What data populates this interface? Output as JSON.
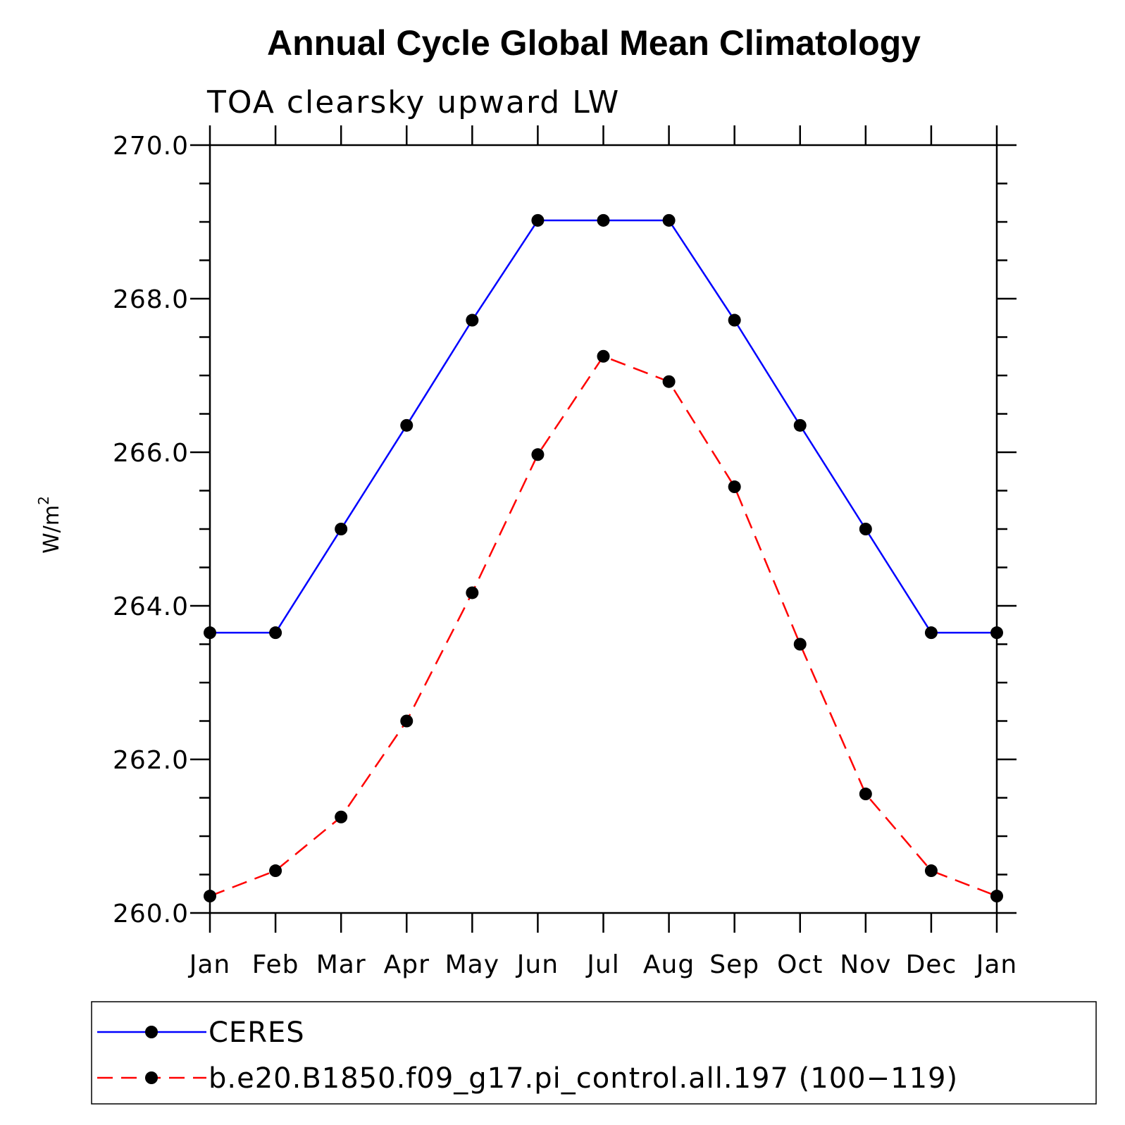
{
  "chart_data": {
    "type": "line",
    "title": "Annual Cycle Global Mean Climatology",
    "subtitle": "TOA clearsky upward LW",
    "ylabel": "W/m",
    "ylabel_superscript": "2",
    "xlabel": "",
    "categories": [
      "Jan",
      "Feb",
      "Mar",
      "Apr",
      "May",
      "Jun",
      "Jul",
      "Aug",
      "Sep",
      "Oct",
      "Nov",
      "Dec",
      "Jan"
    ],
    "ylim": [
      260.0,
      270.0
    ],
    "yticks": [
      "260.0",
      "262.0",
      "264.0",
      "266.0",
      "268.0",
      "270.0"
    ],
    "ytick_values": [
      260,
      262,
      264,
      266,
      268,
      270
    ],
    "yminor_step": 0.5,
    "grid": false,
    "legend_position": "bottom",
    "series": [
      {
        "name": "CERES",
        "color": "#0000ff",
        "style": "solid",
        "values": [
          263.65,
          263.65,
          265.0,
          266.35,
          267.72,
          269.02,
          269.02,
          269.02,
          267.72,
          266.35,
          265.0,
          263.65,
          263.65
        ]
      },
      {
        "name": "b.e20.B1850.f09_g17.pi_control.all.197 (100−119)",
        "color": "#ff0000",
        "style": "dashed",
        "values": [
          260.22,
          260.55,
          261.25,
          262.5,
          264.17,
          265.97,
          267.25,
          266.92,
          265.55,
          263.5,
          261.55,
          260.55,
          260.22
        ]
      }
    ]
  }
}
